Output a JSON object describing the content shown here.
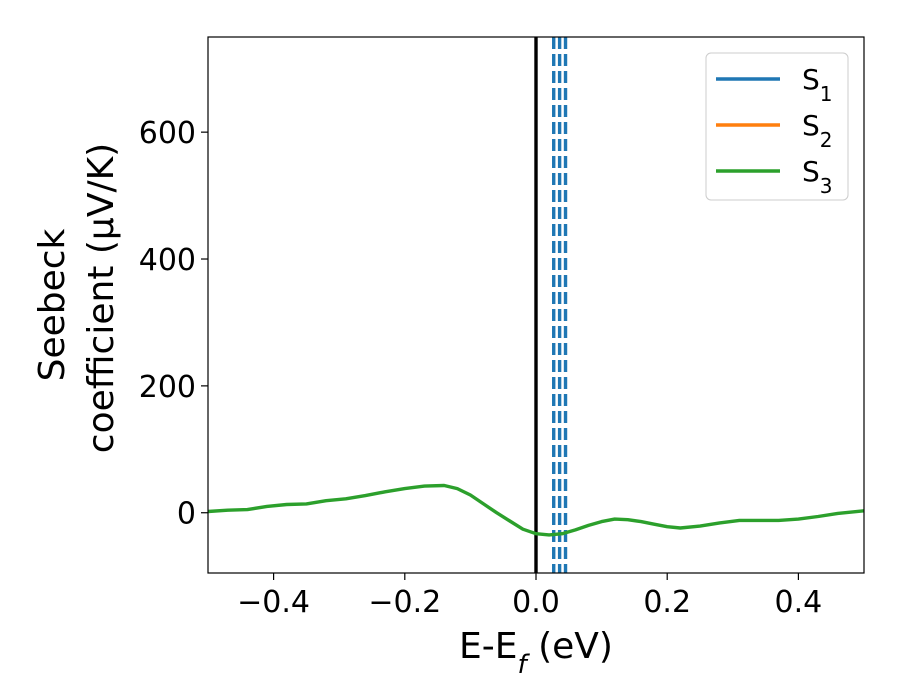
{
  "chart_data": {
    "type": "line",
    "xlabel_parts": {
      "main": "E-E",
      "sub": "f",
      "tail": " (eV)"
    },
    "ylabel_lines": [
      "Seebeck",
      "coefficient  (μV/K)"
    ],
    "xlim": [
      -0.5,
      0.5
    ],
    "ylim": [
      -95,
      750
    ],
    "x_ticks": [
      -0.4,
      -0.2,
      0.0,
      0.2,
      0.4
    ],
    "x_tick_labels": [
      "−0.4",
      "−0.2",
      "0.0",
      "0.2",
      "0.4"
    ],
    "y_ticks": [
      0,
      200,
      400,
      600
    ],
    "y_tick_labels": [
      "0",
      "200",
      "400",
      "600"
    ],
    "grid": false,
    "legend_position": "top-right",
    "series": [
      {
        "name_main": "S",
        "name_sub": "1",
        "color": "#1f77b4"
      },
      {
        "name_main": "S",
        "name_sub": "2",
        "color": "#ff7f0e"
      },
      {
        "name_main": "S",
        "name_sub": "3",
        "color": "#2ca02c",
        "x": [
          -0.5,
          -0.47,
          -0.44,
          -0.41,
          -0.38,
          -0.35,
          -0.32,
          -0.29,
          -0.26,
          -0.23,
          -0.2,
          -0.17,
          -0.14,
          -0.12,
          -0.1,
          -0.08,
          -0.06,
          -0.04,
          -0.02,
          0.0,
          0.02,
          0.04,
          0.06,
          0.08,
          0.1,
          0.12,
          0.14,
          0.16,
          0.18,
          0.2,
          0.22,
          0.25,
          0.28,
          0.31,
          0.34,
          0.37,
          0.4,
          0.43,
          0.46,
          0.5
        ],
        "y": [
          2,
          4,
          5,
          10,
          13,
          14,
          19,
          22,
          27,
          33,
          38,
          42,
          43,
          38,
          28,
          14,
          0,
          -13,
          -26,
          -33,
          -35,
          -33,
          -27,
          -20,
          -14,
          -10,
          -11,
          -14,
          -18,
          -22,
          -24,
          -21,
          -16,
          -12,
          -12,
          -12,
          -10,
          -6,
          -1,
          3
        ]
      }
    ],
    "vlines": [
      {
        "x": 0.0,
        "color": "#000000",
        "style": "solid"
      },
      {
        "x": 0.027,
        "color": "#1f77b4",
        "style": "dashed"
      },
      {
        "x": 0.036,
        "color": "#1f77b4",
        "style": "dashed"
      },
      {
        "x": 0.045,
        "color": "#1f77b4",
        "style": "dashed"
      }
    ]
  }
}
